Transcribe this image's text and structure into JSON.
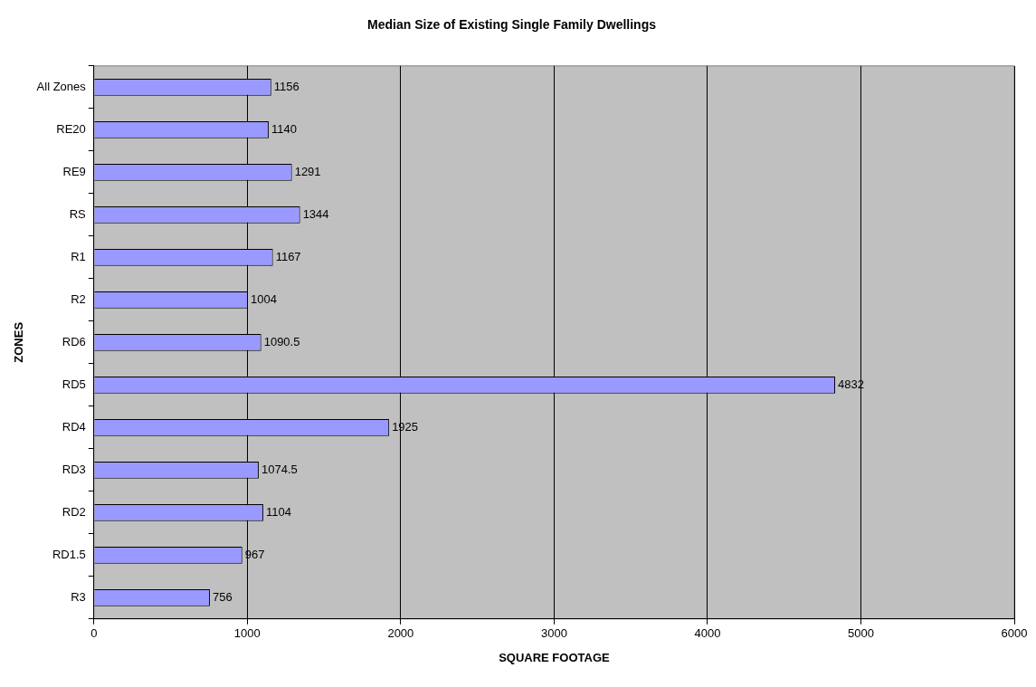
{
  "chart_data": {
    "type": "bar",
    "orientation": "horizontal",
    "title": "Median Size of Existing Single Family Dwellings",
    "xlabel": "SQUARE FOOTAGE",
    "ylabel": "ZONES",
    "categories": [
      "All Zones",
      "RE20",
      "RE9",
      "RS",
      "R1",
      "R2",
      "RD6",
      "RD5",
      "RD4",
      "RD3",
      "RD2",
      "RD1.5",
      "R3"
    ],
    "values": [
      1156,
      1140,
      1291,
      1344,
      1167,
      1004,
      1090.5,
      4832,
      1925,
      1074.5,
      1104,
      967,
      756
    ],
    "color": "#9999ff",
    "xlim": [
      0,
      6000
    ],
    "xticks": [
      0,
      1000,
      2000,
      3000,
      4000,
      5000,
      6000
    ],
    "grid": "x",
    "data_labels": true,
    "legend": false
  }
}
